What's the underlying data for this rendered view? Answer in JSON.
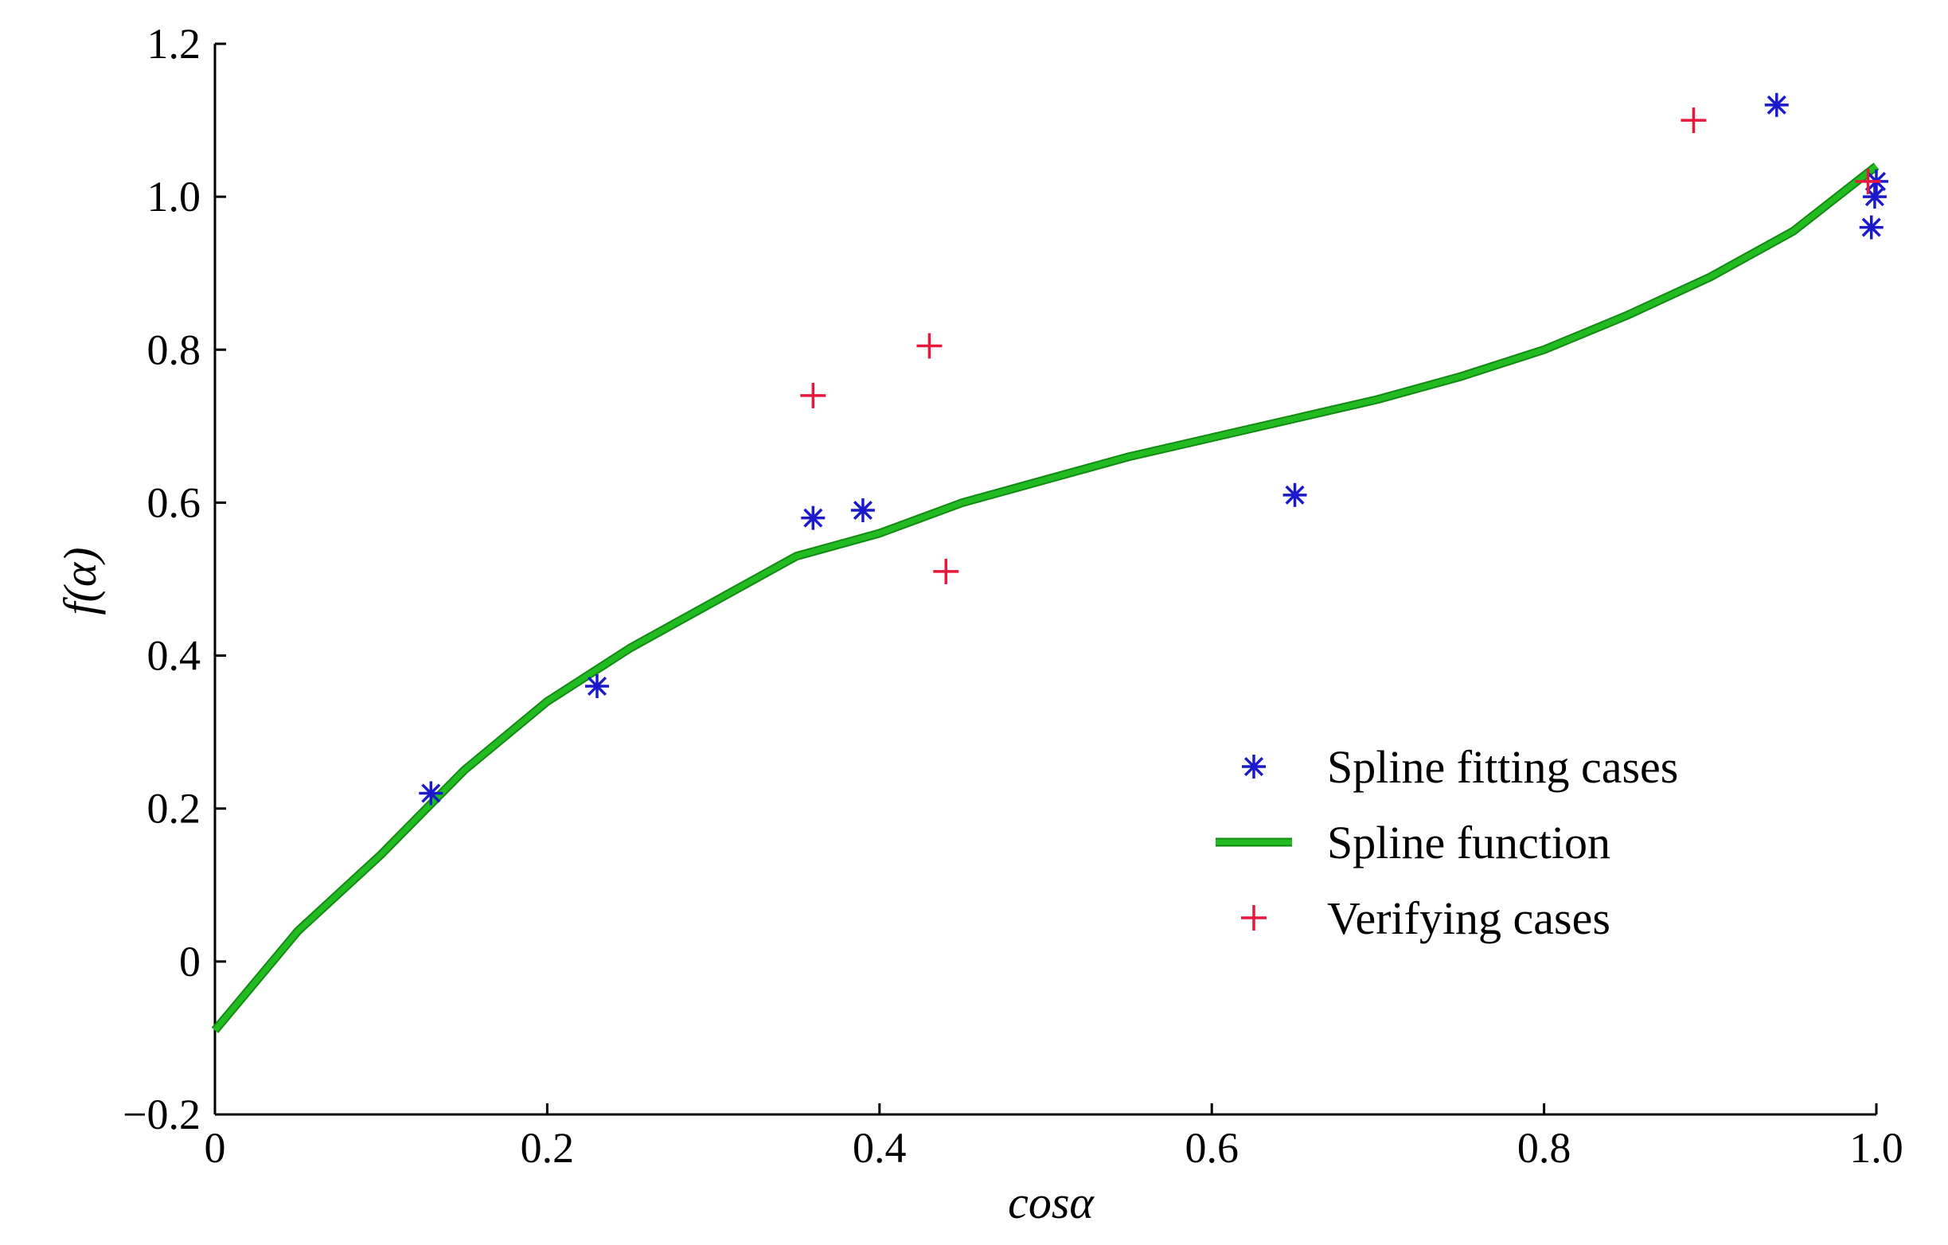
{
  "chart_data": {
    "type": "scatter",
    "xlabel": "cosα",
    "ylabel": "f(α)",
    "xlim": [
      0,
      1.0
    ],
    "ylim": [
      -0.2,
      1.2
    ],
    "x_ticks": [
      "0",
      "0.2",
      "0.4",
      "0.6",
      "0.8",
      "1.0"
    ],
    "y_ticks": [
      "−0.2",
      "0",
      "0.2",
      "0.4",
      "0.6",
      "0.8",
      "1.0",
      "1.2"
    ],
    "x_tick_values": [
      0,
      0.2,
      0.4,
      0.6,
      0.8,
      1.0
    ],
    "y_tick_values": [
      -0.2,
      0,
      0.2,
      0.4,
      0.6,
      0.8,
      1.0,
      1.2
    ],
    "grid": false,
    "legend_position": "lower-right",
    "series": [
      {
        "name": "Spline fitting cases",
        "type": "scatter",
        "marker": "asterisk",
        "color": "#1a1acc",
        "points": [
          [
            0.13,
            0.22
          ],
          [
            0.23,
            0.36
          ],
          [
            0.36,
            0.58
          ],
          [
            0.39,
            0.59
          ],
          [
            0.65,
            0.61
          ],
          [
            0.94,
            1.12
          ],
          [
            0.997,
            0.96
          ],
          [
            0.999,
            1.0
          ],
          [
            1.0,
            1.02
          ]
        ]
      },
      {
        "name": "Spline function",
        "type": "line",
        "color": "#22bb22",
        "points": [
          [
            0,
            -0.09
          ],
          [
            0.05,
            0.04
          ],
          [
            0.1,
            0.14
          ],
          [
            0.15,
            0.25
          ],
          [
            0.2,
            0.34
          ],
          [
            0.25,
            0.41
          ],
          [
            0.3,
            0.47
          ],
          [
            0.35,
            0.53
          ],
          [
            0.4,
            0.56
          ],
          [
            0.45,
            0.6
          ],
          [
            0.5,
            0.63
          ],
          [
            0.55,
            0.66
          ],
          [
            0.6,
            0.685
          ],
          [
            0.65,
            0.71
          ],
          [
            0.7,
            0.735
          ],
          [
            0.75,
            0.765
          ],
          [
            0.8,
            0.8
          ],
          [
            0.85,
            0.845
          ],
          [
            0.9,
            0.895
          ],
          [
            0.95,
            0.955
          ],
          [
            1.0,
            1.04
          ]
        ]
      },
      {
        "name": "Verifying cases",
        "type": "scatter",
        "marker": "plus",
        "color": "#e8183c",
        "points": [
          [
            0.36,
            0.74
          ],
          [
            0.43,
            0.805
          ],
          [
            0.44,
            0.51
          ],
          [
            0.89,
            1.1
          ],
          [
            0.995,
            1.02
          ]
        ]
      }
    ]
  }
}
